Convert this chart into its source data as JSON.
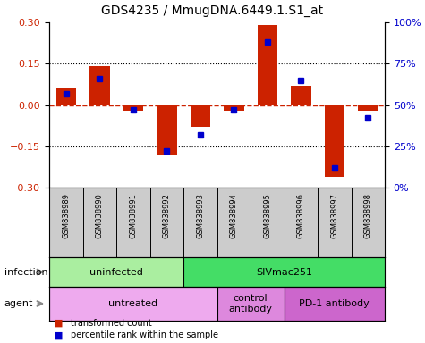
{
  "title": "GDS4235 / MmugDNA.6449.1.S1_at",
  "samples": [
    "GSM838989",
    "GSM838990",
    "GSM838991",
    "GSM838992",
    "GSM838993",
    "GSM838994",
    "GSM838995",
    "GSM838996",
    "GSM838997",
    "GSM838998"
  ],
  "transformed_count": [
    0.06,
    0.14,
    -0.02,
    -0.18,
    -0.08,
    -0.02,
    0.29,
    0.07,
    -0.26,
    -0.02
  ],
  "percentile_rank": [
    57,
    66,
    47,
    22,
    32,
    47,
    88,
    65,
    12,
    42
  ],
  "bar_color": "#cc2200",
  "dot_color": "#0000cc",
  "ylim_left": [
    -0.3,
    0.3
  ],
  "ylim_right": [
    0,
    100
  ],
  "yticks_left": [
    -0.3,
    -0.15,
    0.0,
    0.15,
    0.3
  ],
  "yticks_right": [
    0,
    25,
    50,
    75,
    100
  ],
  "ytick_labels_right": [
    "0%",
    "25%",
    "50%",
    "75%",
    "100%"
  ],
  "hline_color": "#cc2200",
  "dotted_lines": [
    -0.15,
    0.15
  ],
  "infection_groups": [
    {
      "label": "uninfected",
      "start": 0,
      "end": 4,
      "color": "#aaeea a"
    },
    {
      "label": "SIVmac251",
      "start": 4,
      "end": 10,
      "color": "#44dd66"
    }
  ],
  "agent_groups": [
    {
      "label": "untreated",
      "start": 0,
      "end": 5,
      "color": "#eeaaee"
    },
    {
      "label": "control\nantibody",
      "start": 5,
      "end": 7,
      "color": "#dd88dd"
    },
    {
      "label": "PD-1 antibody",
      "start": 7,
      "end": 10,
      "color": "#cc66cc"
    }
  ],
  "legend_bar_label": "transformed count",
  "legend_dot_label": "percentile rank within the sample",
  "infection_label": "infection",
  "agent_label": "agent",
  "background_color": "#ffffff",
  "sample_bg_color": "#cccccc",
  "tick_label_color_left": "#cc2200",
  "tick_label_color_right": "#0000cc"
}
